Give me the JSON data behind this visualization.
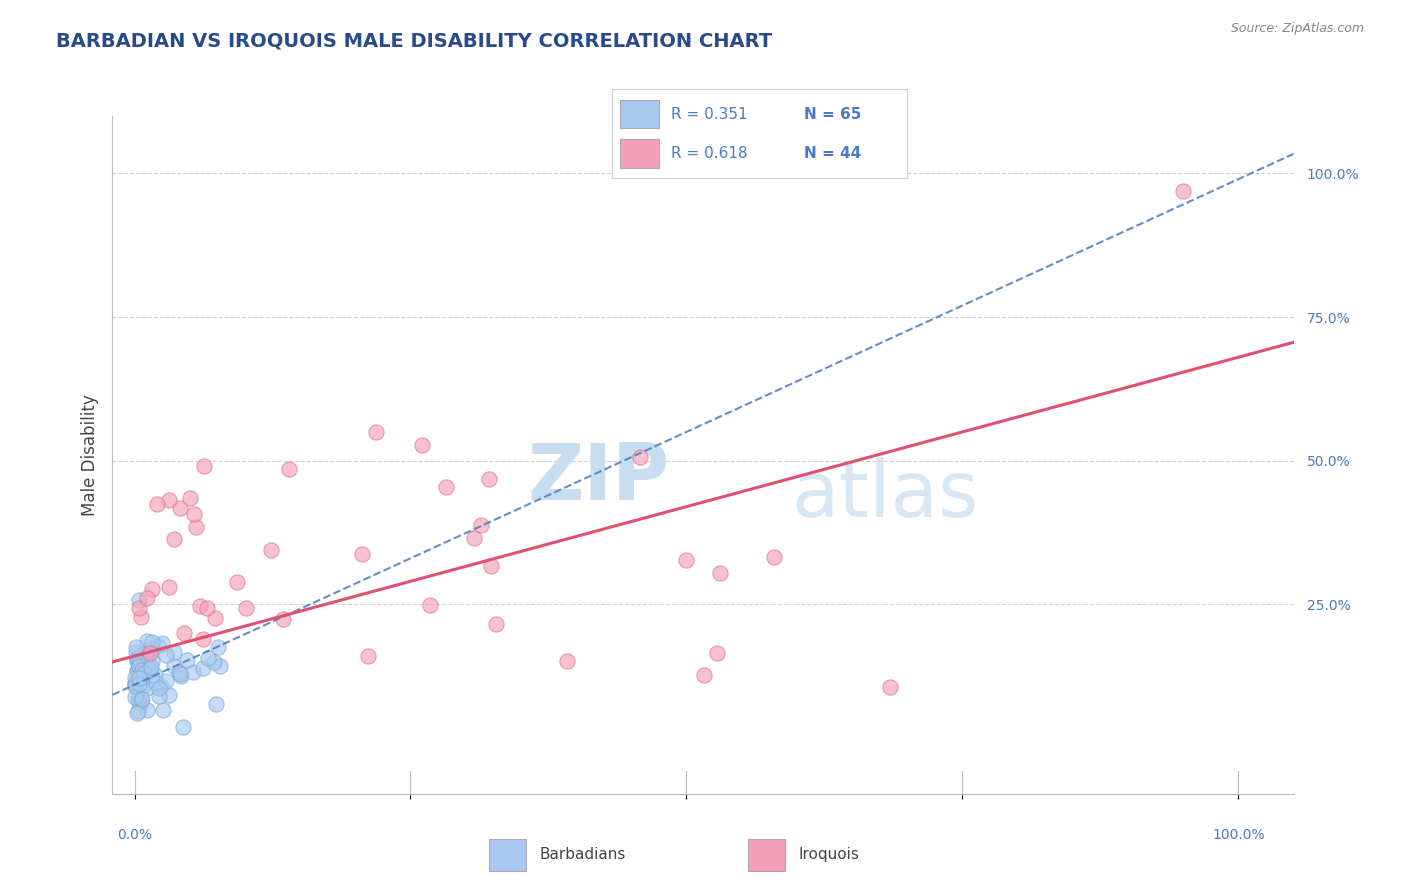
{
  "title": "BARBADIAN VS IROQUOIS MALE DISABILITY CORRELATION CHART",
  "source": "Source: ZipAtlas.com",
  "ylabel": "Male Disability",
  "legend_r1": "R = 0.351",
  "legend_n1": "N = 65",
  "legend_r2": "R = 0.618",
  "legend_n2": "N = 44",
  "legend_label1": "Barbadians",
  "legend_label2": "Iroquois",
  "barbadian_color": "#a8c8f0",
  "barbadian_edge_color": "#7aaad0",
  "iroquois_color": "#f5a0b8",
  "iroquois_edge_color": "#e07090",
  "barbadian_line_color": "#4a7abf",
  "iroquois_line_color": "#e05070",
  "grid_color": "#cccccc",
  "background_color": "#ffffff",
  "title_color": "#2a4a8a",
  "source_color": "#888888",
  "tick_label_color": "#4a7abf",
  "axis_color": "#bbbbbb",
  "watermark_zip_color": "#c8ddf0",
  "watermark_atlas_color": "#c8ddf0"
}
